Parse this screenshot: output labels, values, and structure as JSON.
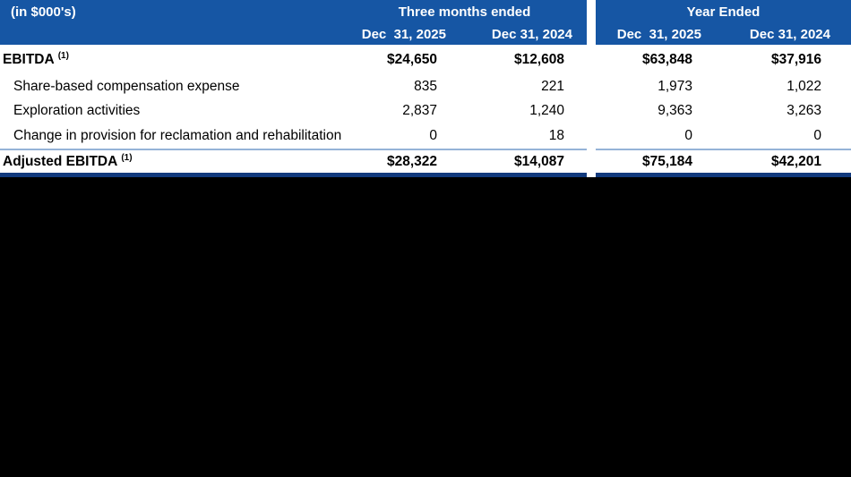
{
  "page": {
    "background_color": "#000000"
  },
  "table": {
    "unit_label": "(in $000's)",
    "groups": [
      {
        "label": "Three months ended",
        "cols": [
          "Dec  31, 2025",
          "Dec 31, 2024"
        ]
      },
      {
        "label": "Year Ended",
        "cols": [
          "Dec  31, 2025",
          "Dec 31, 2024"
        ]
      }
    ],
    "rows": [
      {
        "label": "EBITDA",
        "sup": "(1)",
        "v1": "$24,650",
        "v2": "$12,608",
        "v3": "$63,848",
        "v4": "$37,916"
      },
      {
        "label": "Share-based compensation expense",
        "v1": "835",
        "v2": "221",
        "v3": "1,973",
        "v4": "1,022"
      },
      {
        "label": "Exploration activities",
        "v1": "2,837",
        "v2": "1,240",
        "v3": "9,363",
        "v4": "3,263"
      },
      {
        "label": "Change in provision for reclamation and rehabilitation",
        "v1": "0",
        "v2": "18",
        "v3": "0",
        "v4": "0"
      },
      {
        "label": "Adjusted EBITDA",
        "sup": "(1)",
        "v1": "$28,322",
        "v2": "$14,087",
        "v3": "$75,184",
        "v4": "$42,201"
      }
    ],
    "colors": {
      "header_bg": "#1656A4",
      "header_text": "#FFFFFF",
      "rule_light": "#95B3D7",
      "rule_dark": "#123A7D",
      "body_bg": "#FFFFFF",
      "body_text": "#000000"
    }
  },
  "chart_data": {
    "type": "table",
    "title": "EBITDA and Adjusted EBITDA reconciliation (in $000's)",
    "column_groups": [
      "Three months ended",
      "Year Ended"
    ],
    "columns": [
      "(in $000's)",
      "Three months ended Dec 31, 2025",
      "Three months ended Dec 31, 2024",
      "Year Ended Dec 31, 2025",
      "Year Ended Dec 31, 2024"
    ],
    "rows": [
      [
        "EBITDA (1)",
        24650,
        12608,
        63848,
        37916
      ],
      [
        "Share-based compensation expense",
        835,
        221,
        1973,
        1022
      ],
      [
        "Exploration activities",
        2837,
        1240,
        9363,
        3263
      ],
      [
        "Change in provision for reclamation and rehabilitation",
        0,
        18,
        0,
        0
      ],
      [
        "Adjusted EBITDA (1)",
        28322,
        14087,
        75184,
        42201
      ]
    ]
  }
}
